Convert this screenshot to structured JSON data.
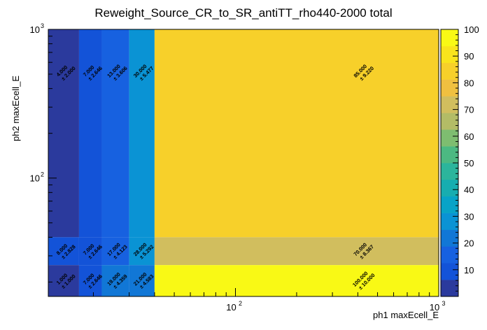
{
  "chart_data": {
    "type": "heatmap",
    "title": "Reweight_Source_CR_to_SR_antiTT_rho440-2000 total",
    "xlabel": "ph1 maxEcell_E",
    "ylabel": "ph2 maxEcell_E",
    "x_scale": "log",
    "y_scale": "log",
    "x_range": [
      12,
      1000
    ],
    "y_range": [
      16,
      1000
    ],
    "z_range": [
      0,
      100
    ],
    "x_edges": [
      12,
      17,
      22,
      30,
      40,
      1000
    ],
    "y_edges": [
      16,
      26,
      40,
      1000
    ],
    "x_tick_labels": [
      {
        "value": 100,
        "base": "10",
        "exp": "2"
      },
      {
        "value": 1000,
        "base": "10",
        "exp": "3"
      }
    ],
    "y_tick_labels": [
      {
        "value": 100,
        "base": "10",
        "exp": "2"
      },
      {
        "value": 1000,
        "base": "10",
        "exp": "3"
      }
    ],
    "palette_ticks": [
      "10",
      "20",
      "30",
      "40",
      "50",
      "60",
      "70",
      "80",
      "90",
      "100"
    ],
    "cells": [
      {
        "ix": 0,
        "iy": 2,
        "value": 4,
        "label": "4.000",
        "err": "± 2.000"
      },
      {
        "ix": 1,
        "iy": 2,
        "value": 7,
        "label": "7.000",
        "err": "± 2.646"
      },
      {
        "ix": 2,
        "iy": 2,
        "value": 13,
        "label": "13.000",
        "err": "± 3.606"
      },
      {
        "ix": 3,
        "iy": 2,
        "value": 30,
        "label": "30.000",
        "err": "± 5.477"
      },
      {
        "ix": 4,
        "iy": 2,
        "value": 85,
        "label": "85.000",
        "err": "± 9.220"
      },
      {
        "ix": 0,
        "iy": 1,
        "value": 8,
        "label": "8.000",
        "err": "± 2.828"
      },
      {
        "ix": 1,
        "iy": 1,
        "value": 7,
        "label": "7.000",
        "err": "± 2.646"
      },
      {
        "ix": 2,
        "iy": 1,
        "value": 17,
        "label": "17.000",
        "err": "± 4.123"
      },
      {
        "ix": 3,
        "iy": 1,
        "value": 28,
        "label": "28.000",
        "err": "± 5.292"
      },
      {
        "ix": 4,
        "iy": 1,
        "value": 70,
        "label": "70.000",
        "err": "± 8.367"
      },
      {
        "ix": 0,
        "iy": 0,
        "value": 1,
        "label": "1.000",
        "err": "± 1.000"
      },
      {
        "ix": 1,
        "iy": 0,
        "value": 7,
        "label": "7.000",
        "err": "± 2.646"
      },
      {
        "ix": 2,
        "iy": 0,
        "value": 19,
        "label": "19.000",
        "err": "± 4.359"
      },
      {
        "ix": 3,
        "iy": 0,
        "value": 21,
        "label": "21.000",
        "err": "± 4.583"
      },
      {
        "ix": 4,
        "iy": 0,
        "value": 100,
        "label": "100.000",
        "err": "± 10.000"
      }
    ],
    "palette_colors": [
      "#2b3a9d",
      "#1353d8",
      "#1761e0",
      "#1177d6",
      "#0a93d4",
      "#08a3c7",
      "#17adb0",
      "#2cb59c",
      "#4cb982",
      "#7ebd70",
      "#b3bc66",
      "#d1be5e",
      "#f0c040",
      "#f7d02a",
      "#f9e41c",
      "#f9f915"
    ],
    "colors": {
      "background": "#ffffff",
      "frame": "#000000"
    }
  }
}
